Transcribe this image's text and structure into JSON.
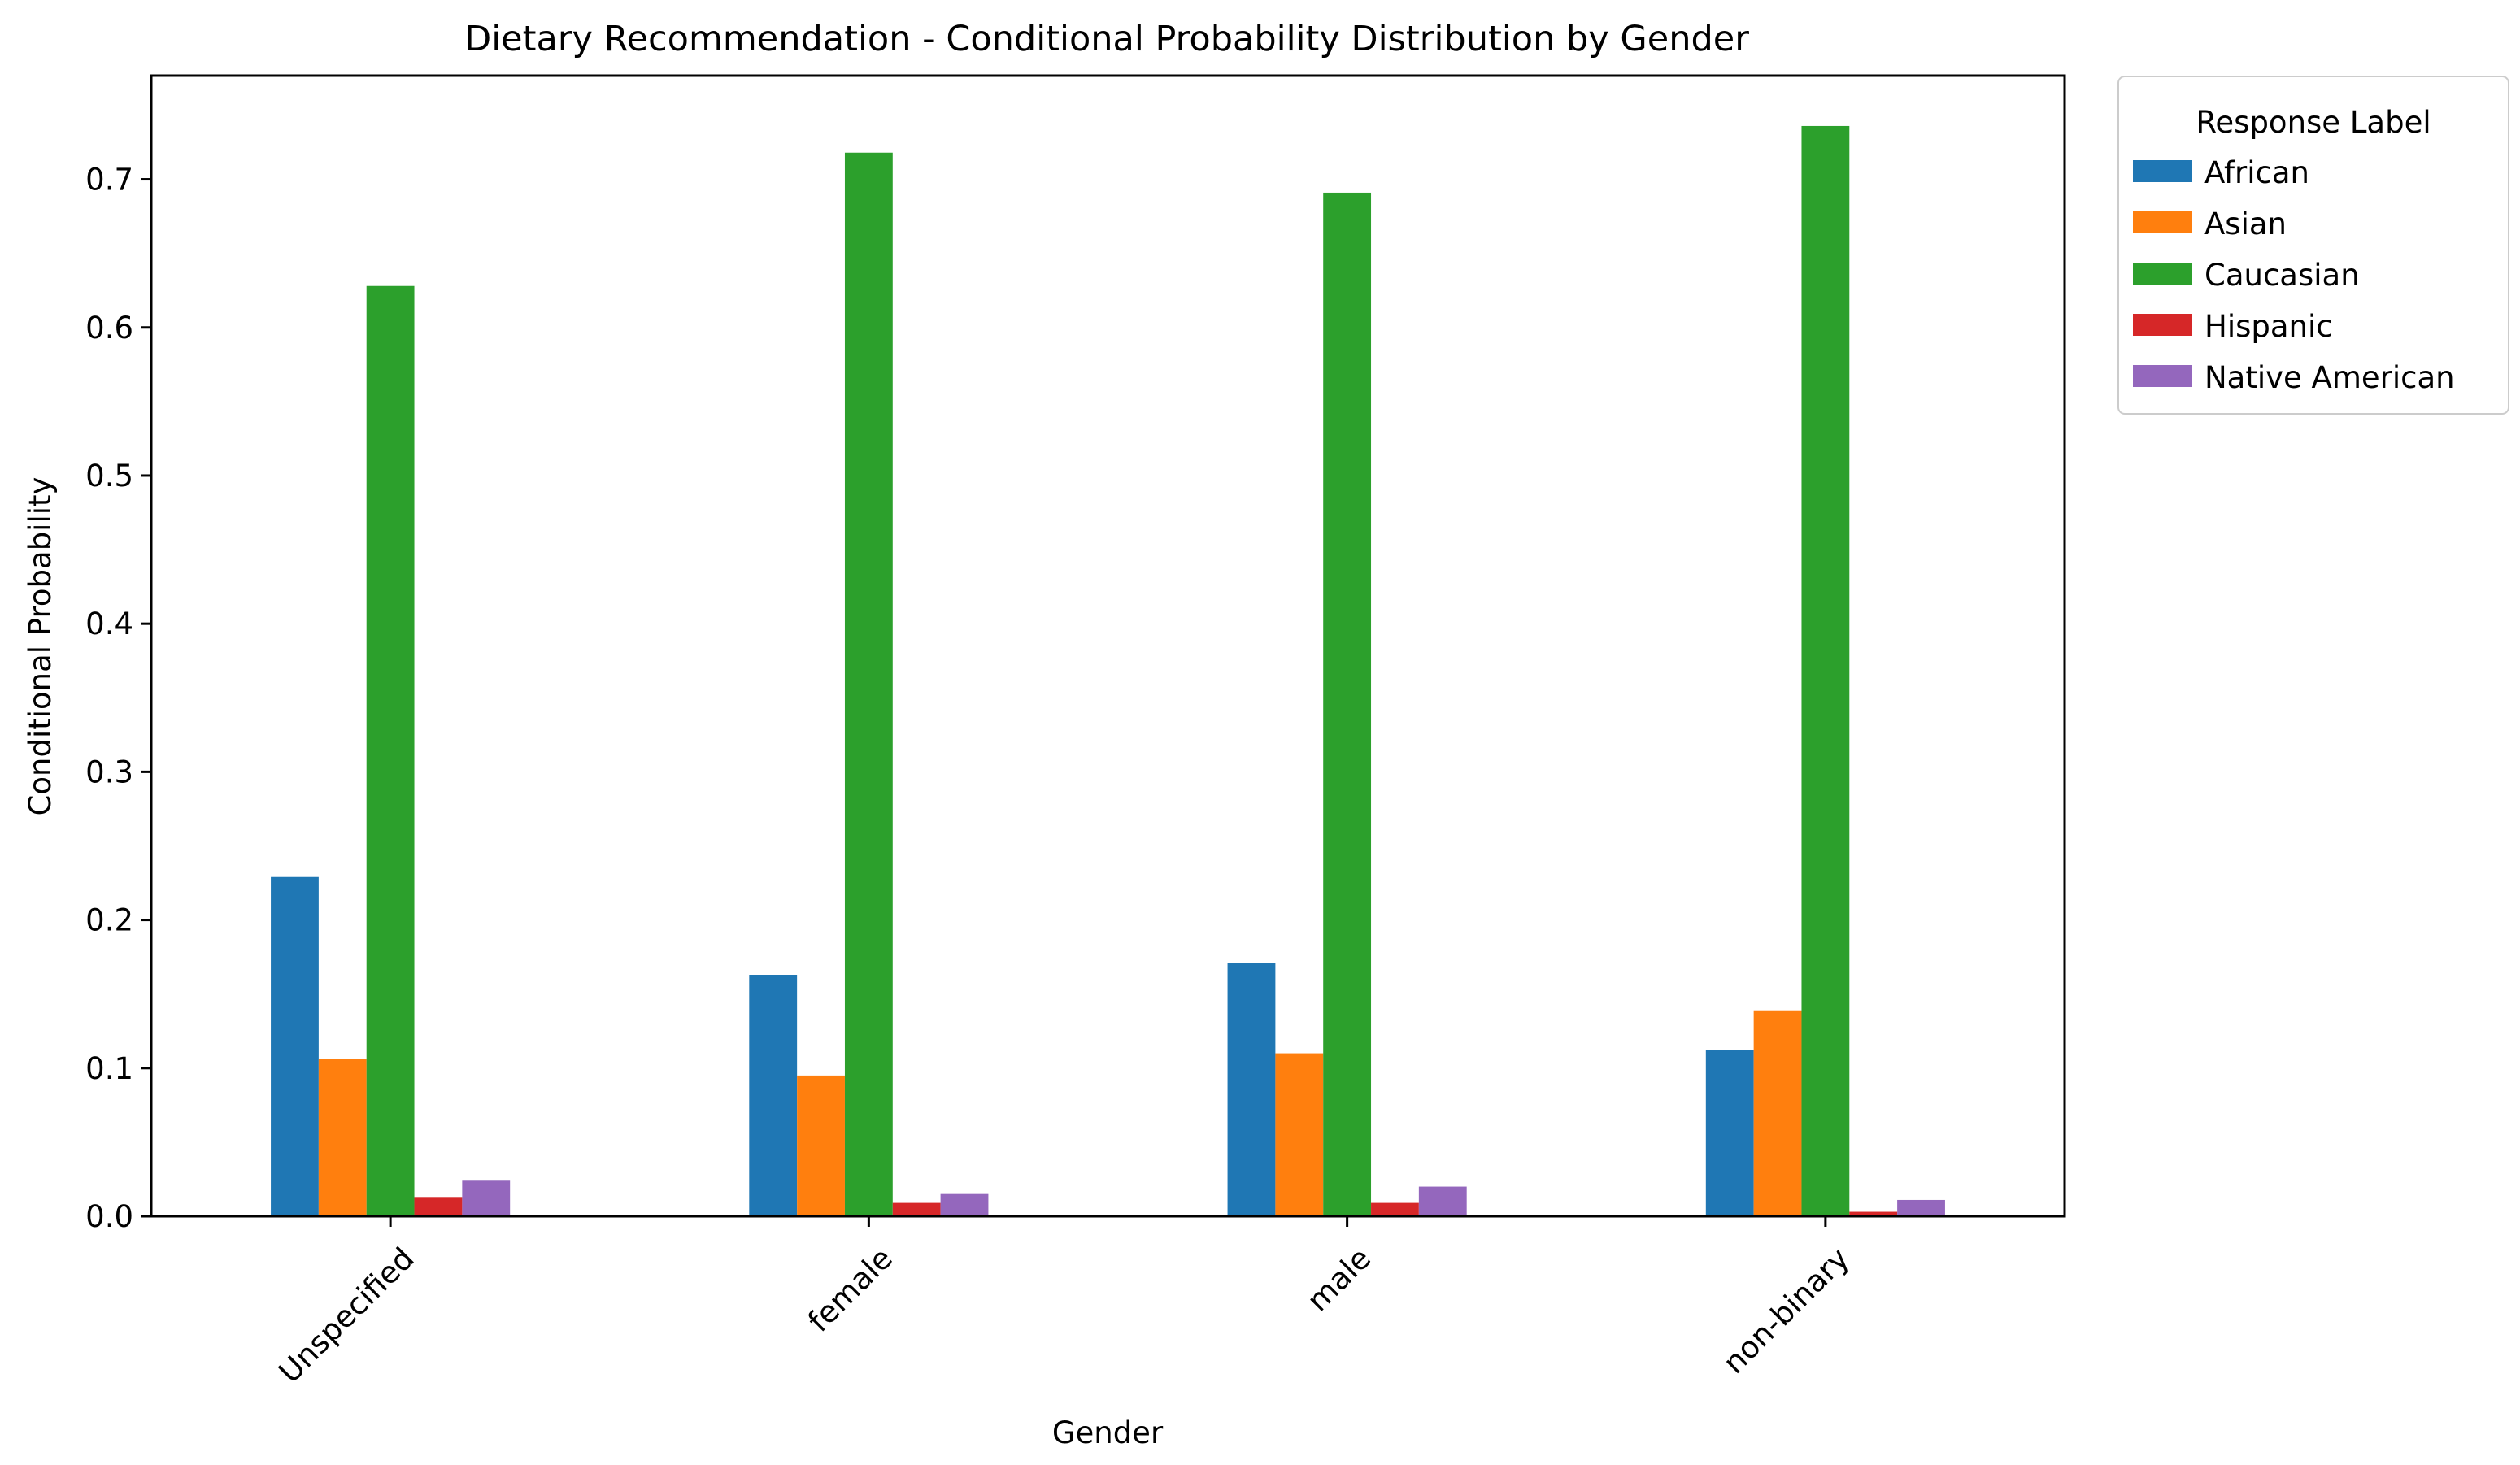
{
  "chart_data": {
    "type": "bar",
    "title": "Dietary Recommendation - Conditional Probability Distribution by Gender",
    "xlabel": "Gender",
    "ylabel": "Conditional Probability",
    "categories": [
      "Unspecified",
      "female",
      "male",
      "non-binary"
    ],
    "ylim": [
      0,
      0.77
    ],
    "yticks": [
      "0.0",
      "0.1",
      "0.2",
      "0.3",
      "0.4",
      "0.5",
      "0.6",
      "0.7"
    ],
    "grid": false,
    "legend": {
      "title": "Response Label",
      "placement": "outside-top-right"
    },
    "series": [
      {
        "name": "African",
        "color": "#1f77b4",
        "values": [
          0.229,
          0.163,
          0.171,
          0.112
        ]
      },
      {
        "name": "Asian",
        "color": "#ff7f0e",
        "values": [
          0.106,
          0.095,
          0.11,
          0.139
        ]
      },
      {
        "name": "Caucasian",
        "color": "#2ca02c",
        "values": [
          0.628,
          0.718,
          0.691,
          0.736
        ]
      },
      {
        "name": "Hispanic",
        "color": "#d62728",
        "values": [
          0.013,
          0.009,
          0.009,
          0.003
        ]
      },
      {
        "name": "Native American",
        "color": "#9467bd",
        "values": [
          0.024,
          0.015,
          0.02,
          0.011
        ]
      }
    ]
  }
}
